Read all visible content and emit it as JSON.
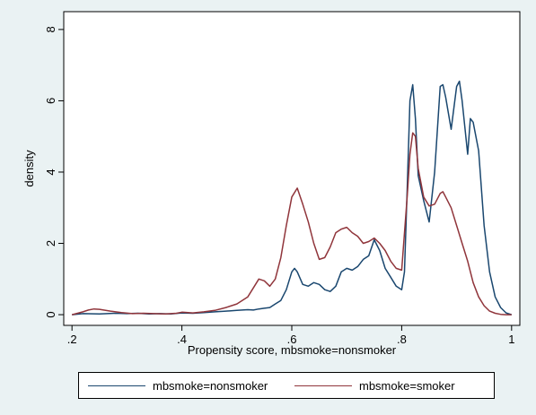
{
  "chart_data": {
    "type": "line",
    "xlabel": "Propensity score, mbsmoke=nonsmoker",
    "ylabel": "density",
    "xlim": [
      0.185,
      1.015
    ],
    "ylim": [
      -0.3,
      8.5
    ],
    "xticks": [
      0.2,
      0.4,
      0.6,
      0.8,
      1.0
    ],
    "xtick_labels": [
      ".2",
      ".4",
      ".6",
      ".8",
      "1"
    ],
    "yticks": [
      0,
      2,
      4,
      6,
      8
    ],
    "ytick_labels": [
      "0",
      "2",
      "4",
      "6",
      "8"
    ],
    "grid": false,
    "legend_position": "bottom",
    "series": [
      {
        "name": "mbsmoke=nonsmoker",
        "color": "#1a476f",
        "x": [
          0.2,
          0.22,
          0.25,
          0.28,
          0.3,
          0.32,
          0.34,
          0.36,
          0.38,
          0.4,
          0.42,
          0.44,
          0.46,
          0.48,
          0.5,
          0.52,
          0.53,
          0.54,
          0.55,
          0.56,
          0.57,
          0.58,
          0.59,
          0.6,
          0.605,
          0.61,
          0.62,
          0.63,
          0.64,
          0.65,
          0.66,
          0.67,
          0.68,
          0.69,
          0.7,
          0.71,
          0.72,
          0.73,
          0.74,
          0.75,
          0.76,
          0.77,
          0.78,
          0.79,
          0.8,
          0.805,
          0.81,
          0.815,
          0.82,
          0.825,
          0.83,
          0.84,
          0.85,
          0.86,
          0.87,
          0.875,
          0.88,
          0.89,
          0.9,
          0.905,
          0.91,
          0.92,
          0.925,
          0.93,
          0.94,
          0.95,
          0.96,
          0.97,
          0.98,
          0.99,
          1.0
        ],
        "y": [
          0.0,
          0.03,
          0.02,
          0.04,
          0.03,
          0.04,
          0.02,
          0.03,
          0.02,
          0.05,
          0.04,
          0.06,
          0.08,
          0.1,
          0.12,
          0.14,
          0.13,
          0.16,
          0.18,
          0.2,
          0.3,
          0.4,
          0.7,
          1.2,
          1.3,
          1.2,
          0.85,
          0.8,
          0.9,
          0.85,
          0.7,
          0.65,
          0.8,
          1.2,
          1.3,
          1.25,
          1.35,
          1.55,
          1.65,
          2.1,
          1.8,
          1.3,
          1.05,
          0.8,
          0.7,
          1.2,
          3.5,
          6.0,
          6.45,
          5.5,
          3.9,
          3.2,
          2.6,
          4.0,
          6.4,
          6.45,
          6.1,
          5.2,
          6.4,
          6.55,
          6.0,
          4.5,
          5.5,
          5.4,
          4.6,
          2.5,
          1.2,
          0.5,
          0.2,
          0.05,
          0.0
        ]
      },
      {
        "name": "mbsmoke=smoker",
        "color": "#90353b",
        "x": [
          0.2,
          0.22,
          0.23,
          0.24,
          0.25,
          0.27,
          0.29,
          0.31,
          0.33,
          0.35,
          0.37,
          0.39,
          0.4,
          0.42,
          0.44,
          0.46,
          0.48,
          0.5,
          0.52,
          0.53,
          0.54,
          0.55,
          0.56,
          0.57,
          0.58,
          0.59,
          0.6,
          0.61,
          0.62,
          0.63,
          0.64,
          0.65,
          0.66,
          0.67,
          0.68,
          0.69,
          0.7,
          0.71,
          0.72,
          0.73,
          0.74,
          0.75,
          0.76,
          0.77,
          0.78,
          0.79,
          0.8,
          0.81,
          0.815,
          0.82,
          0.825,
          0.83,
          0.84,
          0.85,
          0.86,
          0.87,
          0.875,
          0.88,
          0.89,
          0.9,
          0.91,
          0.92,
          0.93,
          0.94,
          0.95,
          0.96,
          0.97,
          0.98,
          0.99,
          1.0
        ],
        "y": [
          0.0,
          0.08,
          0.13,
          0.16,
          0.15,
          0.1,
          0.06,
          0.03,
          0.04,
          0.03,
          0.02,
          0.04,
          0.07,
          0.05,
          0.08,
          0.12,
          0.2,
          0.3,
          0.5,
          0.75,
          1.0,
          0.95,
          0.8,
          1.0,
          1.6,
          2.5,
          3.3,
          3.55,
          3.1,
          2.6,
          2.0,
          1.55,
          1.6,
          1.9,
          2.3,
          2.4,
          2.45,
          2.3,
          2.2,
          2.0,
          2.05,
          2.15,
          2.0,
          1.8,
          1.5,
          1.3,
          1.25,
          3.3,
          4.5,
          5.1,
          5.0,
          4.1,
          3.3,
          3.05,
          3.1,
          3.4,
          3.45,
          3.3,
          3.0,
          2.5,
          2.0,
          1.5,
          0.9,
          0.5,
          0.25,
          0.1,
          0.04,
          0.01,
          0.0,
          0.0
        ]
      }
    ]
  }
}
